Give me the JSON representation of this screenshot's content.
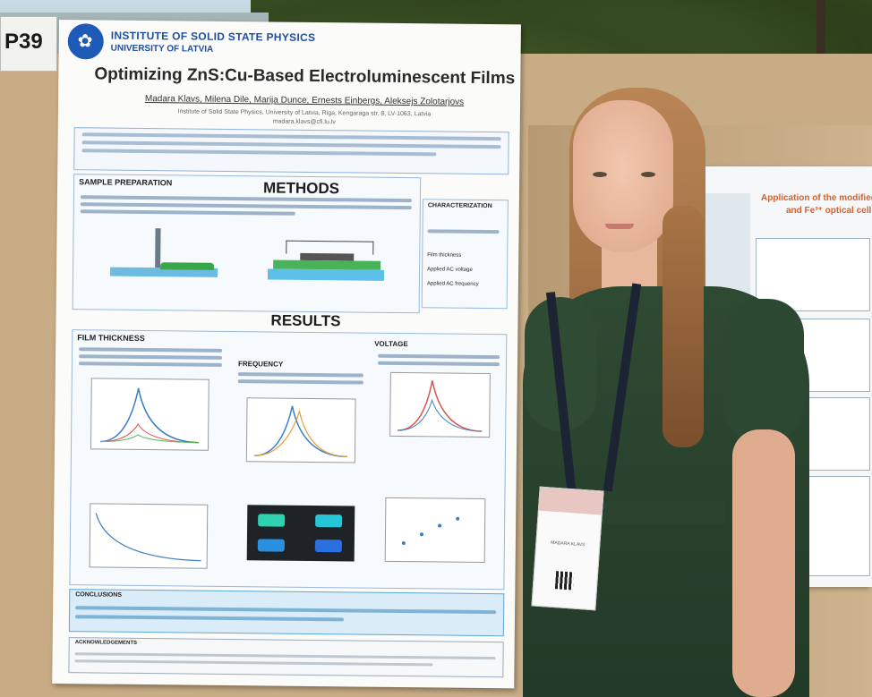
{
  "scene": {
    "board_number": "P39"
  },
  "main_poster": {
    "institute": "INSTITUTE OF SOLID STATE PHYSICS",
    "university": "UNIVERSITY OF LATVIA",
    "title": "Optimizing ZnS:Cu-Based Electroluminescent Films",
    "authors": "Madara Klavs, Milena Dile, Marija Dunce, Ernests Einbergs, Aleksejs Zolotarjovs",
    "affiliation": "Institute of Solid State Physics, University of Latvia, Riga, Kengaraga str. 8, LV-1063, Latvia",
    "email": "madara.klavs@cfi.lu.lv",
    "sections": {
      "sample_preparation": "SAMPLE PREPARATION",
      "methods": "METHODS",
      "characterization": "CHARACTERIZATION",
      "characterization_items": [
        "Film thickness",
        "Applied AC voltage",
        "Applied AC frequency"
      ],
      "results": "RESULTS",
      "film_thickness": "FILM THICKNESS",
      "frequency": "FREQUENCY",
      "voltage": "VOLTAGE",
      "conclusions": "CONCLUSIONS",
      "acknowledgements": "ACKNOWLEDGEMENTS"
    },
    "colors": {
      "logo": "#1e5bb8",
      "header_text": "#1e4fa0",
      "section_border": "#98b8da",
      "conclusion_fill": "#d9ecf7"
    }
  },
  "side_poster": {
    "title_line1": "Application of the modified",
    "title_line2": "and Fe³⁺ optical cell"
  },
  "badge": {
    "name": "MADARA KLAVS"
  }
}
